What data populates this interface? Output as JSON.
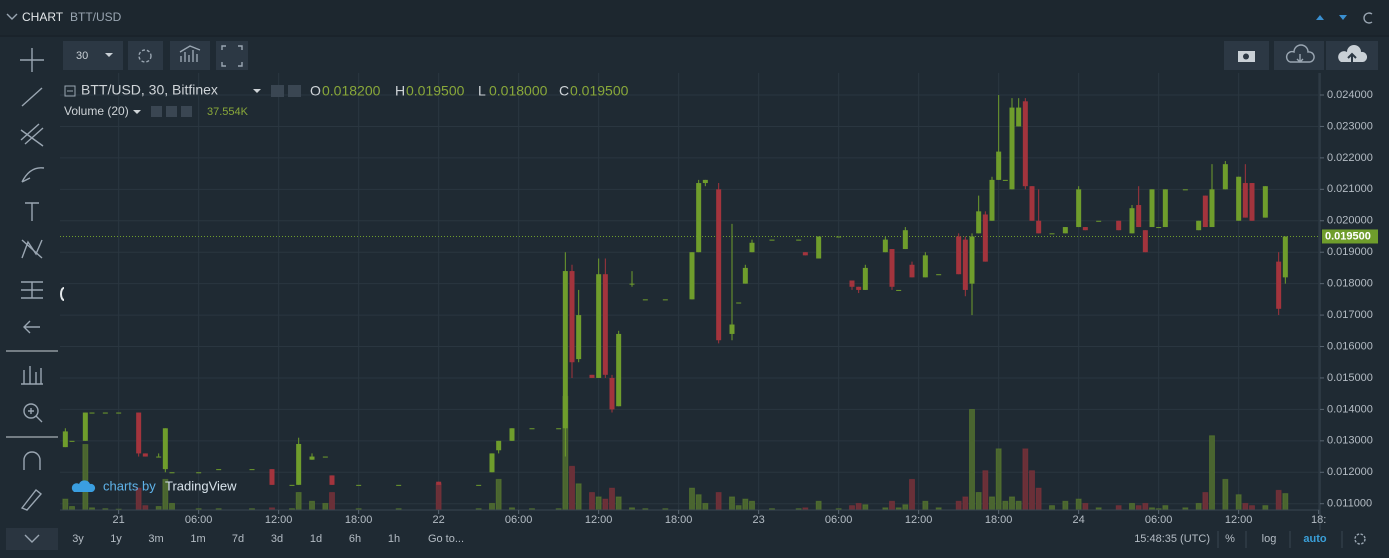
{
  "header": {
    "title": "CHART",
    "symbol": "BTT/USD"
  },
  "toolbar": {
    "interval": "30"
  },
  "chart_data": {
    "type": "candlestick",
    "title": "BTT/USD, 30, Bitfinex",
    "volume_title": "Volume (20)",
    "ohlc_letters": {
      "open": "O",
      "high": "H",
      "low": "L",
      "close": "C"
    },
    "last_labels": {
      "open": "0.018200",
      "high": "0.019500",
      "low": "0.018000",
      "close": "0.019500",
      "volume": "37.554K"
    },
    "up_color": "#6f9d2c",
    "down_color": "#a3343d",
    "volume_up_color": "#4a6530",
    "volume_down_color": "#6a3038",
    "grid": true,
    "xlim": [
      -4.4,
      90.1
    ],
    "xticks": [
      {
        "value": 0,
        "label": "21"
      },
      {
        "value": 6,
        "label": "06:00"
      },
      {
        "value": 12,
        "label": "12:00"
      },
      {
        "value": 18,
        "label": "18:00"
      },
      {
        "value": 24,
        "label": "22"
      },
      {
        "value": 30,
        "label": "06:00"
      },
      {
        "value": 36,
        "label": "12:00"
      },
      {
        "value": 42,
        "label": "18:00"
      },
      {
        "value": 48,
        "label": "23"
      },
      {
        "value": 54,
        "label": "06:00"
      },
      {
        "value": 60,
        "label": "12:00"
      },
      {
        "value": 66,
        "label": "18:00"
      },
      {
        "value": 72,
        "label": "24"
      },
      {
        "value": 78,
        "label": "06:00"
      },
      {
        "value": 84,
        "label": "12:00"
      },
      {
        "value": 90,
        "label": "18:"
      }
    ],
    "ylim": [
      0.0108,
      0.0247
    ],
    "yticks": [
      {
        "value": 0.011,
        "label": "0.011000"
      },
      {
        "value": 0.012,
        "label": "0.012000"
      },
      {
        "value": 0.013,
        "label": "0.013000"
      },
      {
        "value": 0.014,
        "label": "0.014000"
      },
      {
        "value": 0.015,
        "label": "0.015000"
      },
      {
        "value": 0.016,
        "label": "0.016000"
      },
      {
        "value": 0.017,
        "label": "0.017000"
      },
      {
        "value": 0.018,
        "label": "0.018000"
      },
      {
        "value": 0.019,
        "label": "0.019000"
      },
      {
        "value": 0.02,
        "label": "0.020000"
      },
      {
        "value": 0.021,
        "label": "0.021000"
      },
      {
        "value": 0.022,
        "label": "0.022000"
      },
      {
        "value": 0.023,
        "label": "0.023000"
      },
      {
        "value": 0.024,
        "label": "0.024000"
      }
    ],
    "y2lim": [
      0,
      1000000
    ],
    "candles": [
      {
        "x": -4,
        "open": 0.0128,
        "high": 0.0134,
        "low": 0.0128,
        "close": 0.0133,
        "volume": 25000
      },
      {
        "x": -3.5,
        "open": 0.013,
        "high": 0.013,
        "low": 0.013,
        "close": 0.013,
        "volume": 8000
      },
      {
        "x": -2.5,
        "open": 0.013,
        "high": 0.0139,
        "low": 0.013,
        "close": 0.0139,
        "volume": 150000
      },
      {
        "x": -2,
        "open": 0.0139,
        "high": 0.0139,
        "low": 0.0139,
        "close": 0.0139,
        "volume": 5000
      },
      {
        "x": -1,
        "open": 0.0139,
        "high": 0.0139,
        "low": 0.0139,
        "close": 0.0139,
        "volume": 3000
      },
      {
        "x": 0,
        "open": 0.0139,
        "high": 0.0139,
        "low": 0.0139,
        "close": 0.0139,
        "volume": 2000
      },
      {
        "x": 1.5,
        "open": 0.0139,
        "high": 0.0139,
        "low": 0.0125,
        "close": 0.0126,
        "volume": 50000
      },
      {
        "x": 2,
        "open": 0.0126,
        "high": 0.0126,
        "low": 0.0125,
        "close": 0.0125,
        "volume": 10000
      },
      {
        "x": 3,
        "open": 0.0125,
        "high": 0.0126,
        "low": 0.0125,
        "close": 0.0125,
        "volume": 8000
      },
      {
        "x": 3.5,
        "open": 0.0121,
        "high": 0.0134,
        "low": 0.012,
        "close": 0.0134,
        "volume": 70000
      },
      {
        "x": 4,
        "open": 0.012,
        "high": 0.012,
        "low": 0.012,
        "close": 0.012,
        "volume": 15000
      },
      {
        "x": 6,
        "open": 0.012,
        "high": 0.012,
        "low": 0.012,
        "close": 0.012,
        "volume": 3000
      },
      {
        "x": 7.5,
        "open": 0.0121,
        "high": 0.0121,
        "low": 0.0121,
        "close": 0.0121,
        "volume": 3000
      },
      {
        "x": 10,
        "open": 0.0121,
        "high": 0.0121,
        "low": 0.0121,
        "close": 0.0121,
        "volume": 3000
      },
      {
        "x": 11.5,
        "open": 0.0121,
        "high": 0.0121,
        "low": 0.0116,
        "close": 0.0116,
        "volume": 5000
      },
      {
        "x": 13,
        "open": 0.0116,
        "high": 0.0116,
        "low": 0.0116,
        "close": 0.0116,
        "volume": 3000
      },
      {
        "x": 13.5,
        "open": 0.0116,
        "high": 0.0131,
        "low": 0.0116,
        "close": 0.0129,
        "volume": 40000
      },
      {
        "x": 14.5,
        "open": 0.0124,
        "high": 0.0126,
        "low": 0.0124,
        "close": 0.0125,
        "volume": 20000
      },
      {
        "x": 15.5,
        "open": 0.0125,
        "high": 0.0125,
        "low": 0.0125,
        "close": 0.0125,
        "volume": 15000
      },
      {
        "x": 16,
        "open": 0.0119,
        "high": 0.0119,
        "low": 0.0116,
        "close": 0.0116,
        "volume": 40000
      },
      {
        "x": 18,
        "open": 0.0116,
        "high": 0.0116,
        "low": 0.0116,
        "close": 0.0116,
        "volume": 3000
      },
      {
        "x": 21,
        "open": 0.0116,
        "high": 0.0116,
        "low": 0.0116,
        "close": 0.0116,
        "volume": 3000
      },
      {
        "x": 24,
        "open": 0.0117,
        "high": 0.0117,
        "low": 0.0116,
        "close": 0.0116,
        "volume": 60000
      },
      {
        "x": 27,
        "open": 0.0116,
        "high": 0.0116,
        "low": 0.0116,
        "close": 0.0116,
        "volume": 3000
      },
      {
        "x": 28,
        "open": 0.012,
        "high": 0.0126,
        "low": 0.012,
        "close": 0.0126,
        "volume": 15000
      },
      {
        "x": 28.5,
        "open": 0.0127,
        "high": 0.013,
        "low": 0.0126,
        "close": 0.013,
        "volume": 70000
      },
      {
        "x": 29.5,
        "open": 0.013,
        "high": 0.0134,
        "low": 0.013,
        "close": 0.0134,
        "volume": 5000
      },
      {
        "x": 31,
        "open": 0.0134,
        "high": 0.0134,
        "low": 0.0134,
        "close": 0.0134,
        "volume": 3000
      },
      {
        "x": 33,
        "open": 0.0134,
        "high": 0.0134,
        "low": 0.0134,
        "close": 0.0134,
        "volume": 3000
      },
      {
        "x": 33.5,
        "open": 0.0134,
        "high": 0.019,
        "low": 0.0125,
        "close": 0.0184,
        "volume": 260000
      },
      {
        "x": 34,
        "open": 0.0184,
        "high": 0.0186,
        "low": 0.015,
        "close": 0.0155,
        "volume": 100000
      },
      {
        "x": 34.5,
        "open": 0.0156,
        "high": 0.0178,
        "low": 0.0155,
        "close": 0.017,
        "volume": 60000
      },
      {
        "x": 35.5,
        "open": 0.0151,
        "high": 0.0151,
        "low": 0.015,
        "close": 0.015,
        "volume": 40000
      },
      {
        "x": 36,
        "open": 0.015,
        "high": 0.0188,
        "low": 0.015,
        "close": 0.0183,
        "volume": 30000
      },
      {
        "x": 36.5,
        "open": 0.0183,
        "high": 0.0188,
        "low": 0.015,
        "close": 0.0151,
        "volume": 25000
      },
      {
        "x": 37,
        "open": 0.015,
        "high": 0.0151,
        "low": 0.0139,
        "close": 0.014,
        "volume": 50000
      },
      {
        "x": 37.5,
        "open": 0.0141,
        "high": 0.0165,
        "low": 0.0141,
        "close": 0.0164,
        "volume": 30000
      },
      {
        "x": 38.5,
        "open": 0.018,
        "high": 0.0184,
        "low": 0.0179,
        "close": 0.018,
        "volume": 5000
      },
      {
        "x": 39.5,
        "open": 0.0175,
        "high": 0.0175,
        "low": 0.0175,
        "close": 0.0175,
        "volume": 3000
      },
      {
        "x": 41,
        "open": 0.0175,
        "high": 0.0175,
        "low": 0.0175,
        "close": 0.0175,
        "volume": 3000
      },
      {
        "x": 43,
        "open": 0.0175,
        "high": 0.019,
        "low": 0.0175,
        "close": 0.019,
        "volume": 50000
      },
      {
        "x": 43.5,
        "open": 0.019,
        "high": 0.0213,
        "low": 0.019,
        "close": 0.0212,
        "volume": 35000
      },
      {
        "x": 44,
        "open": 0.0212,
        "high": 0.0213,
        "low": 0.0211,
        "close": 0.0213,
        "volume": 15000
      },
      {
        "x": 45,
        "open": 0.021,
        "high": 0.0212,
        "low": 0.0161,
        "close": 0.0162,
        "volume": 40000
      },
      {
        "x": 46,
        "open": 0.0164,
        "high": 0.0199,
        "low": 0.0162,
        "close": 0.0167,
        "volume": 30000
      },
      {
        "x": 46.5,
        "open": 0.0174,
        "high": 0.0174,
        "low": 0.0174,
        "close": 0.0174,
        "volume": 10000
      },
      {
        "x": 47,
        "open": 0.018,
        "high": 0.0186,
        "low": 0.018,
        "close": 0.0185,
        "volume": 25000
      },
      {
        "x": 47.5,
        "open": 0.019,
        "high": 0.0194,
        "low": 0.019,
        "close": 0.0193,
        "volume": 20000
      },
      {
        "x": 49,
        "open": 0.0194,
        "high": 0.0194,
        "low": 0.0194,
        "close": 0.0194,
        "volume": 3000
      },
      {
        "x": 51,
        "open": 0.0194,
        "high": 0.0194,
        "low": 0.0194,
        "close": 0.0194,
        "volume": 3000
      },
      {
        "x": 51.5,
        "open": 0.019,
        "high": 0.019,
        "low": 0.0189,
        "close": 0.0189,
        "volume": 5000
      },
      {
        "x": 52.5,
        "open": 0.0188,
        "high": 0.0195,
        "low": 0.0188,
        "close": 0.0195,
        "volume": 20000
      },
      {
        "x": 54,
        "open": 0.0195,
        "high": 0.0195,
        "low": 0.0195,
        "close": 0.0195,
        "volume": 3000
      },
      {
        "x": 55,
        "open": 0.0181,
        "high": 0.0181,
        "low": 0.0178,
        "close": 0.0179,
        "volume": 10000
      },
      {
        "x": 55.5,
        "open": 0.0179,
        "high": 0.0179,
        "low": 0.0177,
        "close": 0.0178,
        "volume": 15000
      },
      {
        "x": 56,
        "open": 0.0178,
        "high": 0.0186,
        "low": 0.0178,
        "close": 0.0185,
        "volume": 12000
      },
      {
        "x": 57.5,
        "open": 0.019,
        "high": 0.0195,
        "low": 0.019,
        "close": 0.0194,
        "volume": 5000
      },
      {
        "x": 58,
        "open": 0.0191,
        "high": 0.0191,
        "low": 0.0178,
        "close": 0.0179,
        "volume": 20000
      },
      {
        "x": 58.5,
        "open": 0.0178,
        "high": 0.0178,
        "low": 0.0178,
        "close": 0.0178,
        "volume": 5000
      },
      {
        "x": 59,
        "open": 0.0191,
        "high": 0.0198,
        "low": 0.0191,
        "close": 0.0197,
        "volume": 12000
      },
      {
        "x": 59.5,
        "open": 0.0186,
        "high": 0.0187,
        "low": 0.0182,
        "close": 0.0182,
        "volume": 70000
      },
      {
        "x": 60.5,
        "open": 0.0182,
        "high": 0.019,
        "low": 0.0182,
        "close": 0.0189,
        "volume": 20000
      },
      {
        "x": 61.5,
        "open": 0.0183,
        "high": 0.0183,
        "low": 0.0183,
        "close": 0.0183,
        "volume": 5000
      },
      {
        "x": 63,
        "open": 0.0195,
        "high": 0.0196,
        "low": 0.0183,
        "close": 0.0183,
        "volume": 20000
      },
      {
        "x": 63.5,
        "open": 0.0194,
        "high": 0.0195,
        "low": 0.0176,
        "close": 0.0178,
        "volume": 30000
      },
      {
        "x": 64,
        "open": 0.018,
        "high": 0.0196,
        "low": 0.017,
        "close": 0.0195,
        "volume": 230000
      },
      {
        "x": 64.5,
        "open": 0.0196,
        "high": 0.0208,
        "low": 0.0196,
        "close": 0.0203,
        "volume": 40000
      },
      {
        "x": 65,
        "open": 0.0202,
        "high": 0.0203,
        "low": 0.0187,
        "close": 0.0187,
        "volume": 90000
      },
      {
        "x": 65.5,
        "open": 0.02,
        "high": 0.0214,
        "low": 0.02,
        "close": 0.0213,
        "volume": 30000
      },
      {
        "x": 66,
        "open": 0.0213,
        "high": 0.024,
        "low": 0.0213,
        "close": 0.0222,
        "volume": 140000
      },
      {
        "x": 66.5,
        "open": 0.0213,
        "high": 0.0213,
        "low": 0.0213,
        "close": 0.0213,
        "volume": 20000
      },
      {
        "x": 67,
        "open": 0.021,
        "high": 0.0239,
        "low": 0.021,
        "close": 0.0236,
        "volume": 30000
      },
      {
        "x": 67.5,
        "open": 0.023,
        "high": 0.0239,
        "low": 0.023,
        "close": 0.0236,
        "volume": 20000
      },
      {
        "x": 68,
        "open": 0.0238,
        "high": 0.0239,
        "low": 0.021,
        "close": 0.0211,
        "volume": 140000
      },
      {
        "x": 68.5,
        "open": 0.0211,
        "high": 0.0211,
        "low": 0.02,
        "close": 0.02,
        "volume": 90000
      },
      {
        "x": 69,
        "open": 0.02,
        "high": 0.021,
        "low": 0.0196,
        "close": 0.0196,
        "volume": 50000
      },
      {
        "x": 70,
        "open": 0.0196,
        "high": 0.0196,
        "low": 0.0196,
        "close": 0.0196,
        "volume": 10000
      },
      {
        "x": 71,
        "open": 0.0196,
        "high": 0.0198,
        "low": 0.0196,
        "close": 0.0198,
        "volume": 20000
      },
      {
        "x": 72,
        "open": 0.0198,
        "high": 0.0211,
        "low": 0.0198,
        "close": 0.021,
        "volume": 25000
      },
      {
        "x": 72.5,
        "open": 0.0198,
        "high": 0.0198,
        "low": 0.0197,
        "close": 0.0197,
        "volume": 15000
      },
      {
        "x": 73.5,
        "open": 0.02,
        "high": 0.02,
        "low": 0.02,
        "close": 0.02,
        "volume": 5000
      },
      {
        "x": 75,
        "open": 0.02,
        "high": 0.02,
        "low": 0.0197,
        "close": 0.0197,
        "volume": 10000
      },
      {
        "x": 76,
        "open": 0.0196,
        "high": 0.0205,
        "low": 0.0196,
        "close": 0.0204,
        "volume": 15000
      },
      {
        "x": 76.5,
        "open": 0.0205,
        "high": 0.0211,
        "low": 0.0198,
        "close": 0.0198,
        "volume": 10000
      },
      {
        "x": 77,
        "open": 0.0197,
        "high": 0.0197,
        "low": 0.019,
        "close": 0.019,
        "volume": 15000
      },
      {
        "x": 77.5,
        "open": 0.0198,
        "high": 0.021,
        "low": 0.0198,
        "close": 0.021,
        "volume": 5000
      },
      {
        "x": 78,
        "open": 0.0198,
        "high": 0.0198,
        "low": 0.0198,
        "close": 0.0198,
        "volume": 3000
      },
      {
        "x": 78.5,
        "open": 0.0198,
        "high": 0.021,
        "low": 0.0198,
        "close": 0.021,
        "volume": 10000
      },
      {
        "x": 80,
        "open": 0.021,
        "high": 0.021,
        "low": 0.021,
        "close": 0.021,
        "volume": 5000
      },
      {
        "x": 81,
        "open": 0.0197,
        "high": 0.02,
        "low": 0.0197,
        "close": 0.02,
        "volume": 15000
      },
      {
        "x": 81.5,
        "open": 0.0208,
        "high": 0.0208,
        "low": 0.0198,
        "close": 0.0198,
        "volume": 40000
      },
      {
        "x": 82,
        "open": 0.0198,
        "high": 0.0218,
        "low": 0.0198,
        "close": 0.021,
        "volume": 170000
      },
      {
        "x": 83,
        "open": 0.021,
        "high": 0.0219,
        "low": 0.021,
        "close": 0.0218,
        "volume": 70000
      },
      {
        "x": 84,
        "open": 0.02,
        "high": 0.0214,
        "low": 0.02,
        "close": 0.0214,
        "volume": 35000
      },
      {
        "x": 84.5,
        "open": 0.0212,
        "high": 0.0218,
        "low": 0.0201,
        "close": 0.0201,
        "volume": 15000
      },
      {
        "x": 85,
        "open": 0.0212,
        "high": 0.0212,
        "low": 0.02,
        "close": 0.02,
        "volume": 10000
      },
      {
        "x": 86,
        "open": 0.0201,
        "high": 0.0211,
        "low": 0.0201,
        "close": 0.0211,
        "volume": 10000
      },
      {
        "x": 87,
        "open": 0.0187,
        "high": 0.019,
        "low": 0.017,
        "close": 0.0172,
        "volume": 45000
      },
      {
        "x": 87.5,
        "open": 0.0182,
        "high": 0.0195,
        "low": 0.018,
        "close": 0.0195,
        "volume": 37554
      }
    ]
  },
  "watermark": {
    "prefix": "charts by",
    "brand": "TradingView"
  },
  "footer": {
    "ranges": [
      "3y",
      "1y",
      "3m",
      "1m",
      "7d",
      "3d",
      "1d",
      "6h",
      "1h"
    ],
    "goto": "Go to...",
    "clock": "15:48:35 (UTC)",
    "percent": "%",
    "log": "log",
    "auto": "auto"
  }
}
